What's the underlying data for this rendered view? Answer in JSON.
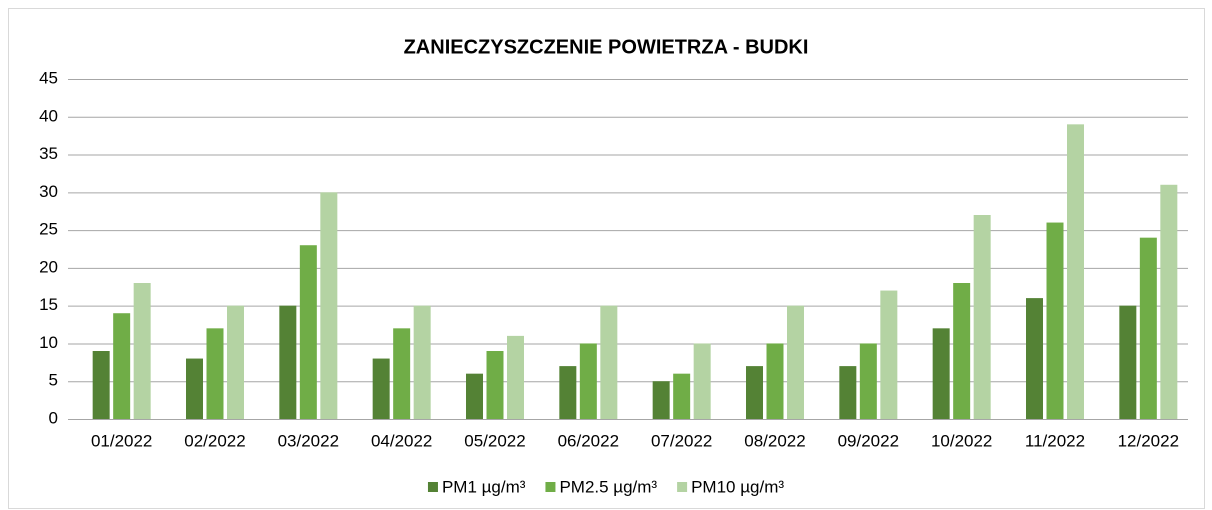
{
  "chart_data": {
    "type": "bar",
    "title": "ZANIECZYSZCZENIE POWIETRZA - BUDKI",
    "categories": [
      "01/2022",
      "02/2022",
      "03/2022",
      "04/2022",
      "05/2022",
      "06/2022",
      "07/2022",
      "08/2022",
      "09/2022",
      "10/2022",
      "11/2022",
      "12/2022"
    ],
    "series": [
      {
        "name": "PM1 µg/m³",
        "color": "#548235",
        "values": [
          9,
          8,
          15,
          8,
          6,
          7,
          5,
          7,
          7,
          12,
          16,
          15
        ]
      },
      {
        "name": "PM2.5 µg/m³",
        "color": "#70ad47",
        "values": [
          14,
          12,
          23,
          12,
          9,
          10,
          6,
          10,
          10,
          18,
          26,
          24
        ]
      },
      {
        "name": "PM10 µg/m³",
        "color": "#b4d3a3",
        "values": [
          18,
          15,
          30,
          15,
          11,
          15,
          10,
          15,
          17,
          27,
          39,
          31
        ]
      }
    ],
    "ylim": [
      0,
      45
    ],
    "yticks": [
      0,
      5,
      10,
      15,
      20,
      25,
      30,
      35,
      40,
      45
    ],
    "grid": true,
    "legend": "bottom"
  }
}
